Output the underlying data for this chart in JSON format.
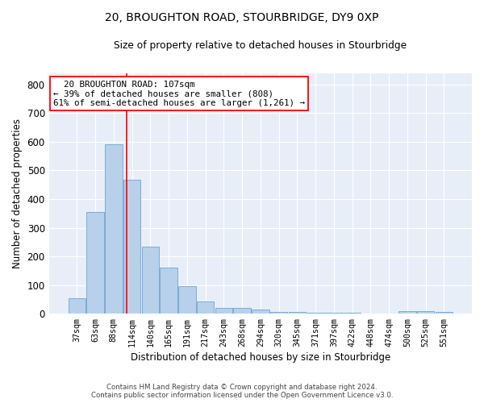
{
  "title1": "20, BROUGHTON ROAD, STOURBRIDGE, DY9 0XP",
  "title2": "Size of property relative to detached houses in Stourbridge",
  "xlabel": "Distribution of detached houses by size in Stourbridge",
  "ylabel": "Number of detached properties",
  "bar_color": "#b8d0ea",
  "bar_edge_color": "#7aadd4",
  "bg_color": "#e8eef8",
  "grid_color": "#ffffff",
  "categories": [
    "37sqm",
    "63sqm",
    "88sqm",
    "114sqm",
    "140sqm",
    "165sqm",
    "191sqm",
    "217sqm",
    "243sqm",
    "268sqm",
    "294sqm",
    "320sqm",
    "345sqm",
    "371sqm",
    "397sqm",
    "422sqm",
    "448sqm",
    "474sqm",
    "500sqm",
    "525sqm",
    "551sqm"
  ],
  "values": [
    55,
    355,
    590,
    467,
    234,
    161,
    96,
    44,
    20,
    19,
    15,
    7,
    5,
    4,
    3,
    2,
    1,
    0,
    9,
    9,
    5
  ],
  "annotation_line1": "  20 BROUGHTON ROAD: 107sqm",
  "annotation_line2": "← 39% of detached houses are smaller (808)",
  "annotation_line3": "61% of semi-detached houses are larger (1,261) →",
  "property_line_x": 2.72,
  "ylim": [
    0,
    840
  ],
  "yticks": [
    0,
    100,
    200,
    300,
    400,
    500,
    600,
    700,
    800
  ],
  "footnote1": "Contains HM Land Registry data © Crown copyright and database right 2024.",
  "footnote2": "Contains public sector information licensed under the Open Government Licence v3.0."
}
